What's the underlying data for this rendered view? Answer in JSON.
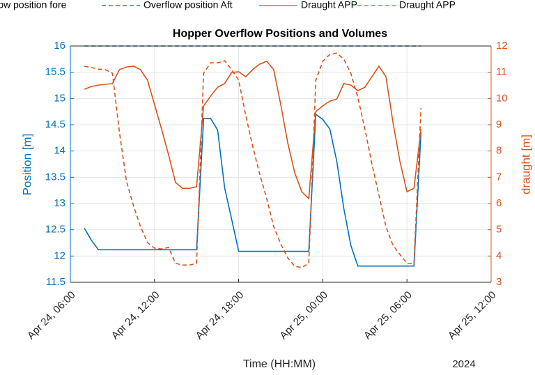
{
  "chart_data": {
    "type": "line",
    "title": "Hopper Overflow Positions and Volumes",
    "xlabel": "Time (HH:MM)",
    "ylabel": "Position [m]",
    "y2label": "draught [m]",
    "annotation": "2024",
    "x": [
      "Apr 24, 07:00",
      "Apr 24, 07:30",
      "Apr 24, 08:00",
      "Apr 24, 08:30",
      "Apr 24, 09:00",
      "Apr 24, 09:30",
      "Apr 24, 10:00",
      "Apr 24, 10:30",
      "Apr 24, 11:00",
      "Apr 24, 11:30",
      "Apr 24, 12:00",
      "Apr 24, 12:30",
      "Apr 24, 13:00",
      "Apr 24, 13:30",
      "Apr 24, 14:00",
      "Apr 24, 14:30",
      "Apr 24, 15:00",
      "Apr 24, 15:30",
      "Apr 24, 16:00",
      "Apr 24, 16:30",
      "Apr 24, 17:00",
      "Apr 24, 17:30",
      "Apr 24, 18:00",
      "Apr 24, 18:30",
      "Apr 24, 19:00",
      "Apr 24, 19:30",
      "Apr 24, 20:00",
      "Apr 24, 20:30",
      "Apr 24, 21:00",
      "Apr 24, 21:30",
      "Apr 24, 22:00",
      "Apr 24, 22:30",
      "Apr 24, 23:00",
      "Apr 24, 23:30",
      "Apr 25, 00:00",
      "Apr 25, 00:30",
      "Apr 25, 01:00",
      "Apr 25, 01:30",
      "Apr 25, 02:00",
      "Apr 25, 02:30",
      "Apr 25, 03:00",
      "Apr 25, 03:30",
      "Apr 25, 04:00",
      "Apr 25, 04:30",
      "Apr 25, 05:00",
      "Apr 25, 05:30",
      "Apr 25, 06:00",
      "Apr 25, 06:30",
      "Apr 25, 07:00"
    ],
    "series": [
      {
        "name": "Overflow position fore",
        "color": "#0072BD",
        "linestyle": "solid",
        "axis": "y",
        "values": [
          12.53,
          12.3,
          12.12,
          12.12,
          12.12,
          12.12,
          12.12,
          12.12,
          12.12,
          12.12,
          12.12,
          12.12,
          12.12,
          12.12,
          12.12,
          12.12,
          12.12,
          14.62,
          14.62,
          14.4,
          13.3,
          12.7,
          12.09,
          12.09,
          12.09,
          12.09,
          12.09,
          12.09,
          12.09,
          12.09,
          12.09,
          12.09,
          12.09,
          14.7,
          14.6,
          14.42,
          13.8,
          12.9,
          12.2,
          11.81,
          11.81,
          11.81,
          11.81,
          11.81,
          11.81,
          11.81,
          11.81,
          11.81,
          14.35
        ]
      },
      {
        "name": "Overflow position Aft",
        "color": "#0072BD",
        "linestyle": "dashed",
        "axis": "y",
        "values": [
          16,
          16,
          16,
          16,
          16,
          16,
          16,
          16,
          16,
          16,
          16,
          16,
          16,
          16,
          16,
          16,
          16,
          16,
          16,
          16,
          16,
          16,
          16,
          16,
          16,
          16,
          16,
          16,
          16,
          16,
          16,
          16,
          16,
          16,
          16,
          16,
          16,
          16,
          16,
          16,
          16,
          16,
          16,
          16,
          16,
          16,
          16,
          16,
          16
        ]
      },
      {
        "name": "Draught APP",
        "color": "#D95319",
        "linestyle": "solid",
        "axis": "y2",
        "values": [
          10.35,
          10.46,
          10.51,
          10.54,
          10.57,
          11.1,
          11.2,
          11.23,
          11.1,
          10.7,
          9.77,
          8.84,
          7.86,
          6.8,
          6.58,
          6.58,
          6.64,
          9.72,
          10.09,
          10.43,
          10.57,
          10.99,
          11.02,
          10.83,
          11.1,
          11.31,
          11.42,
          11.1,
          9.77,
          8.31,
          7.17,
          6.45,
          6.19,
          9.5,
          9.72,
          9.9,
          9.98,
          10.57,
          10.51,
          10.3,
          10.43,
          10.83,
          11.23,
          10.83,
          9.1,
          7.6,
          6.45,
          6.58,
          8.84
        ]
      },
      {
        "name": "Draught APP",
        "color": "#D95319",
        "linestyle": "dashed",
        "axis": "y2",
        "values": [
          11.23,
          11.18,
          11.12,
          11.1,
          10.96,
          8.71,
          6.85,
          5.92,
          5.12,
          4.51,
          4.3,
          4.27,
          4.33,
          3.72,
          3.66,
          3.66,
          3.72,
          10.96,
          11.36,
          11.36,
          11.44,
          11.1,
          10.7,
          9.37,
          8.18,
          7.12,
          6.19,
          5.12,
          4.46,
          3.93,
          3.61,
          3.56,
          3.72,
          10.7,
          11.42,
          11.68,
          11.73,
          11.5,
          10.96,
          10.04,
          8.84,
          7.51,
          6.32,
          5.12,
          4.41,
          4.06,
          3.72,
          3.72,
          9.64
        ]
      }
    ],
    "xlim": [
      "Apr 24, 06:00",
      "Apr 25, 12:00"
    ],
    "xticks": [
      "Apr 24, 06:00",
      "Apr 24, 12:00",
      "Apr 24, 18:00",
      "Apr 25, 00:00",
      "Apr 25, 06:00",
      "Apr 25, 12:00"
    ],
    "ylim": [
      11.5,
      16
    ],
    "yticks": [
      11.5,
      12,
      12.5,
      13,
      13.5,
      14,
      14.5,
      15,
      15.5,
      16
    ],
    "y2lim": [
      3,
      12
    ],
    "y2ticks": [
      3,
      4,
      5,
      6,
      7,
      8,
      9,
      10,
      11,
      12
    ],
    "grid": true,
    "legend": "top"
  }
}
